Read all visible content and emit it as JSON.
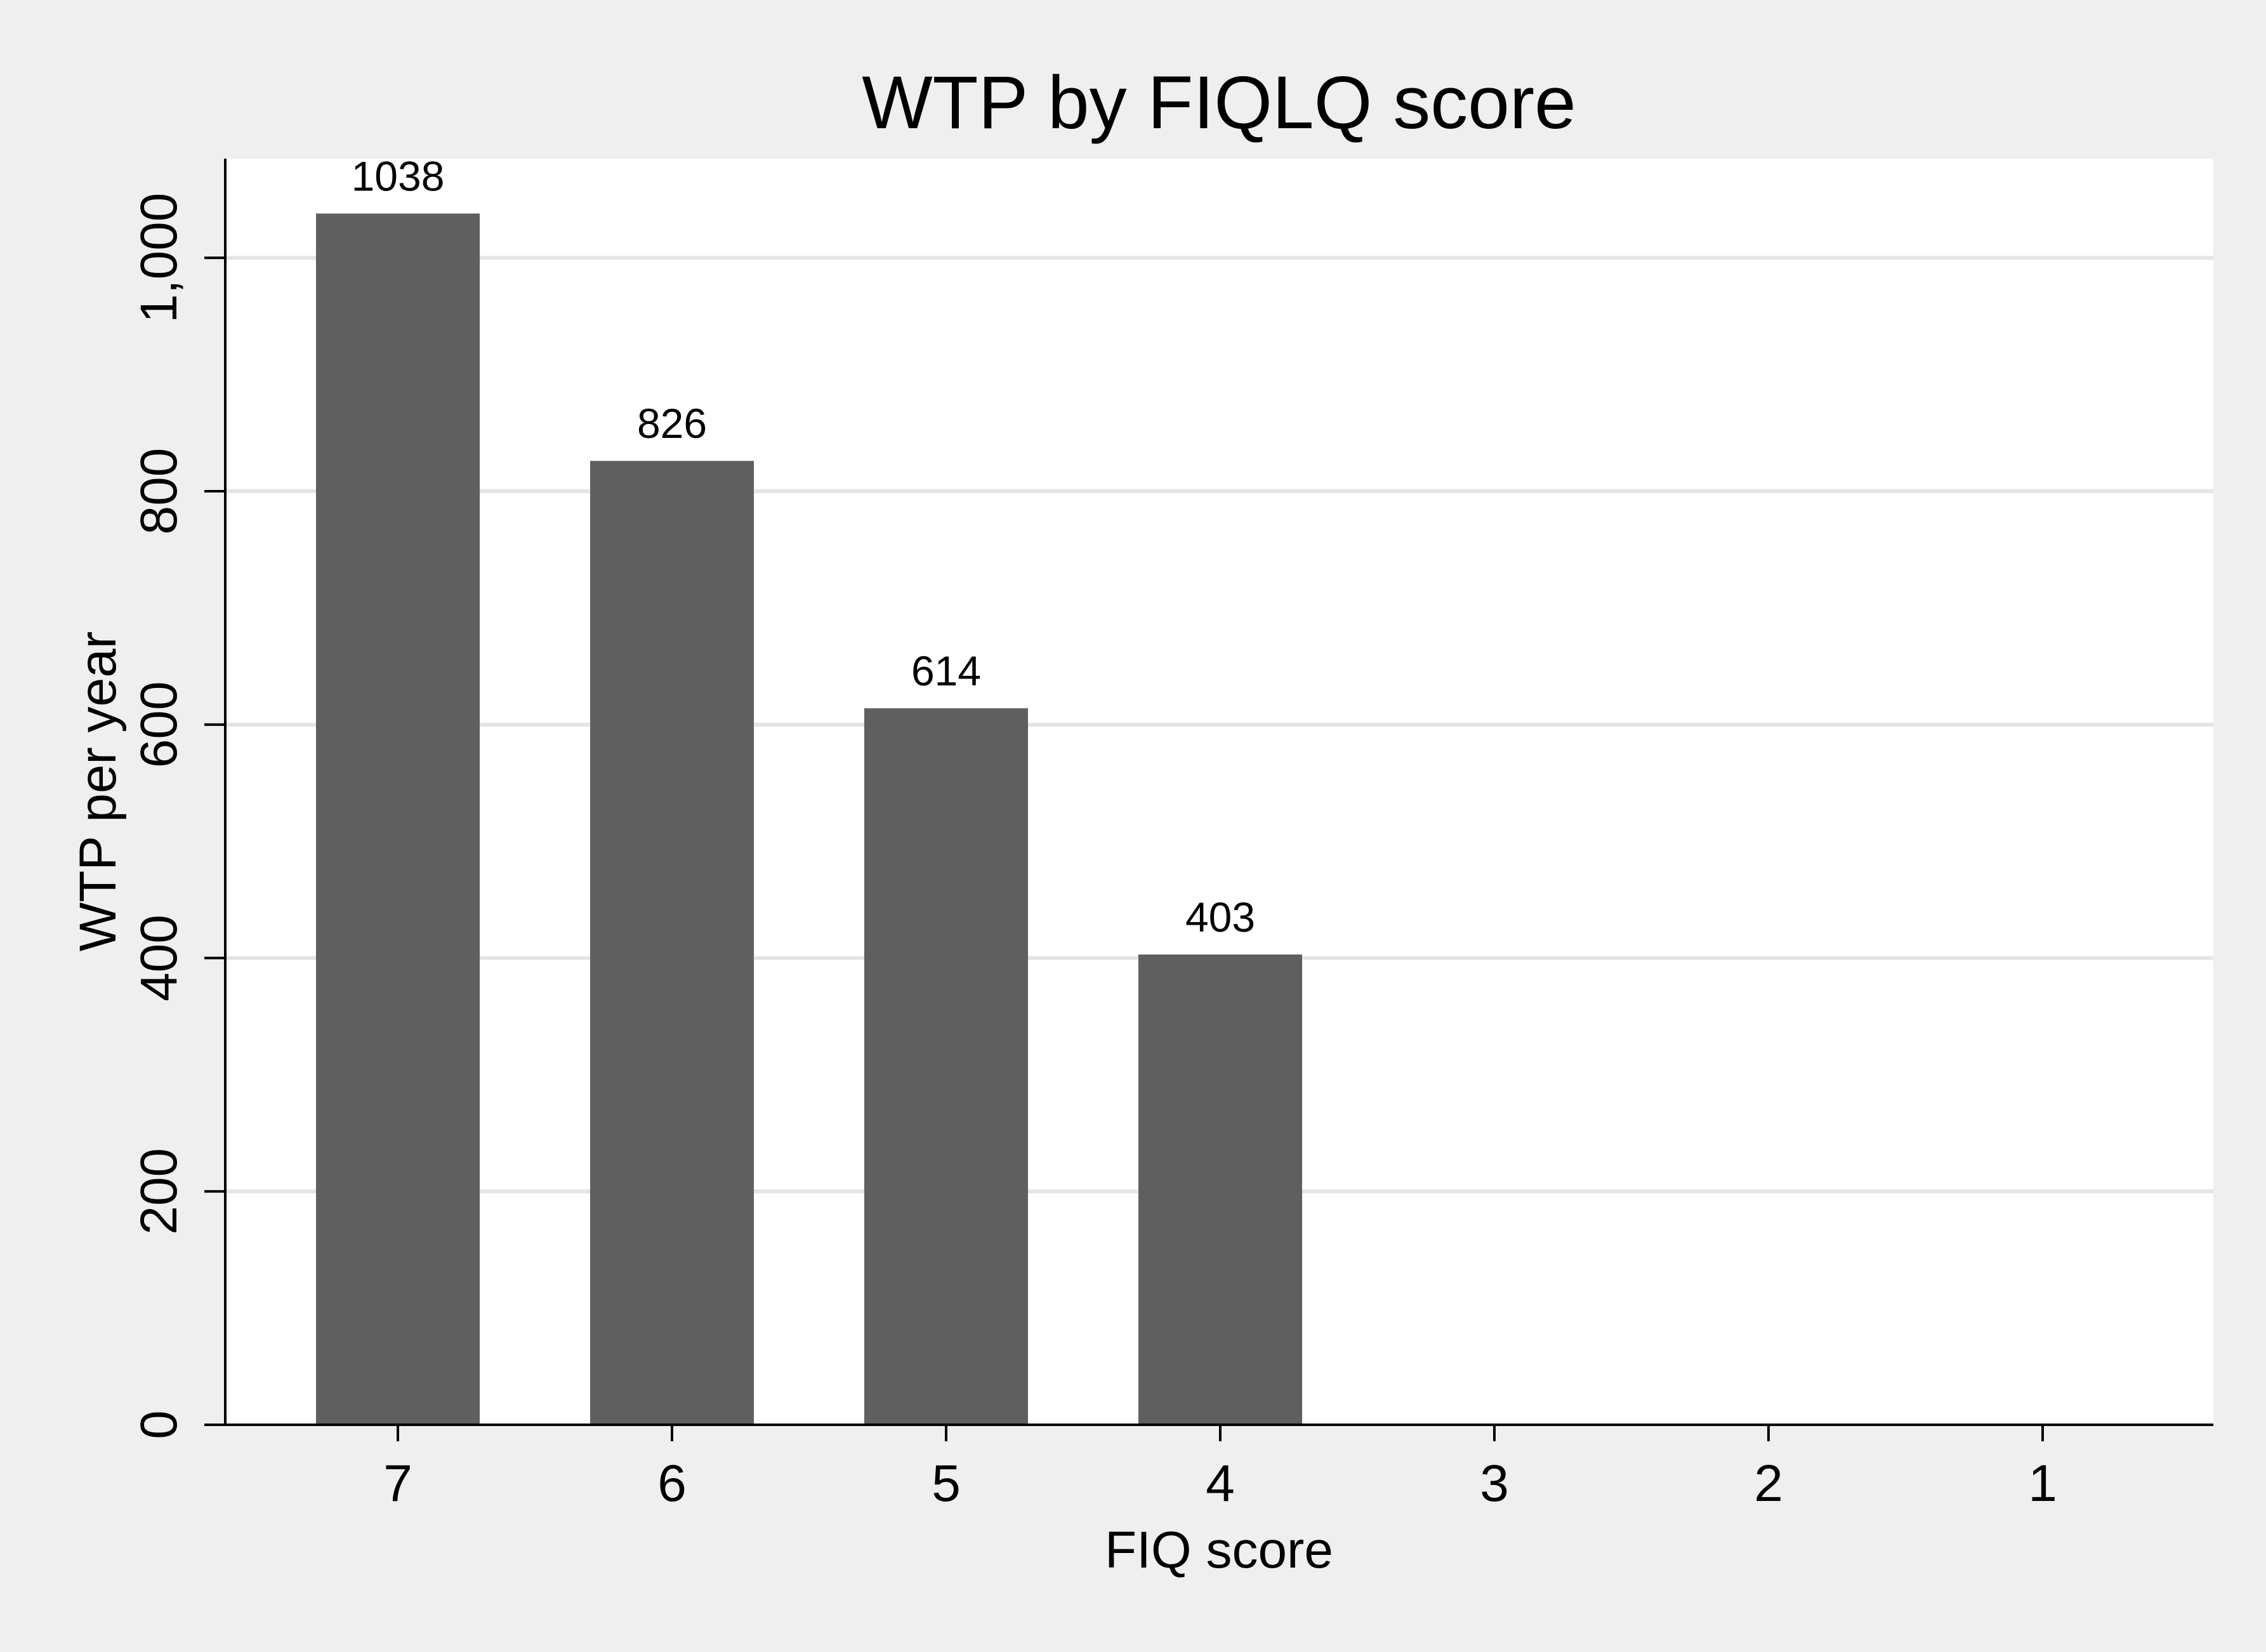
{
  "chart_data": {
    "type": "bar",
    "title": "WTP by FIQLQ score",
    "xlabel": "FIQ score",
    "ylabel": "WTP per year",
    "categories": [
      "7",
      "6",
      "5",
      "4",
      "3",
      "2",
      "1"
    ],
    "values": [
      1038,
      826,
      614,
      403,
      null,
      null,
      null
    ],
    "data_labels": [
      "1038",
      "826",
      "614",
      "403",
      "",
      "",
      ""
    ],
    "ylim": [
      0,
      1085
    ],
    "yticks": [
      0,
      200,
      400,
      600,
      800,
      1000
    ],
    "ytick_labels": [
      "0",
      "200",
      "400",
      "600",
      "800",
      "1,000"
    ],
    "grid": true,
    "legend": "none",
    "colors": {
      "bar": "#5f5f5f",
      "plot_background": "#ffffff",
      "outer_background": "#efefef",
      "grid": "#e4e4e4",
      "axis": "#000000"
    }
  }
}
